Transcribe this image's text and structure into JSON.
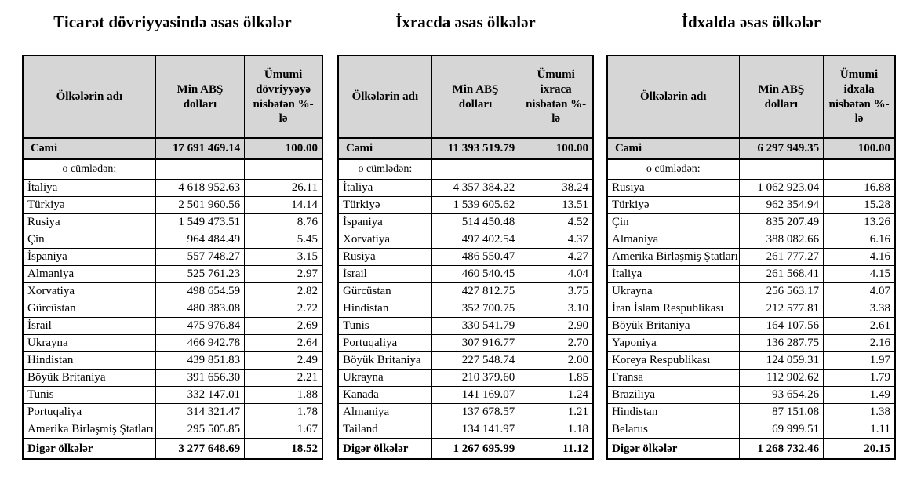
{
  "page": {
    "background_color": "#ffffff",
    "header_shading_color": "#d6d6d6",
    "border_color": "#000000"
  },
  "tables": [
    {
      "title": "Ticarət dövriyyəsində əsas ölkələr",
      "columns": [
        "Ölkələrin adı",
        "Min ABŞ dolları",
        "Ümumi dövriyyəyə nisbətən %-lə"
      ],
      "total": [
        "Cəmi",
        "17 691 469.14",
        "100.00"
      ],
      "subheader": "o cümlədən:",
      "rows": [
        [
          "İtaliya",
          "4 618 952.63",
          "26.11"
        ],
        [
          "Türkiyə",
          "2 501 960.56",
          "14.14"
        ],
        [
          "Rusiya",
          "1 549 473.51",
          "8.76"
        ],
        [
          "Çin",
          "964 484.49",
          "5.45"
        ],
        [
          "İspaniya",
          "557 748.27",
          "3.15"
        ],
        [
          "Almaniya",
          "525 761.23",
          "2.97"
        ],
        [
          "Xorvatiya",
          "498 654.59",
          "2.82"
        ],
        [
          "Gürcüstan",
          "480 383.08",
          "2.72"
        ],
        [
          "İsrail",
          "475 976.84",
          "2.69"
        ],
        [
          "Ukrayna",
          "466 942.78",
          "2.64"
        ],
        [
          "Hindistan",
          "439 851.83",
          "2.49"
        ],
        [
          "Böyük Britaniya",
          "391 656.30",
          "2.21"
        ],
        [
          "Tunis",
          "332 147.01",
          "1.88"
        ],
        [
          "Portuqaliya",
          "314 321.47",
          "1.78"
        ],
        [
          "Amerika Birləşmiş Ştatları",
          "295 505.85",
          "1.67"
        ]
      ],
      "footer": [
        "Digər ölkələr",
        "3 277 648.69",
        "18.52"
      ]
    },
    {
      "title": "İxracda əsas ölkələr",
      "columns": [
        "Ölkələrin adı",
        "Min ABŞ dolları",
        "Ümumi ixraca nisbətən %-lə"
      ],
      "total": [
        "Cəmi",
        "11 393 519.79",
        "100.00"
      ],
      "subheader": "o cümlədən:",
      "rows": [
        [
          "İtaliya",
          "4 357 384.22",
          "38.24"
        ],
        [
          "Türkiyə",
          "1 539 605.62",
          "13.51"
        ],
        [
          "İspaniya",
          "514 450.48",
          "4.52"
        ],
        [
          "Xorvatiya",
          "497 402.54",
          "4.37"
        ],
        [
          "Rusiya",
          "486 550.47",
          "4.27"
        ],
        [
          "İsrail",
          "460 540.45",
          "4.04"
        ],
        [
          "Gürcüstan",
          "427 812.75",
          "3.75"
        ],
        [
          "Hindistan",
          "352 700.75",
          "3.10"
        ],
        [
          "Tunis",
          "330 541.79",
          "2.90"
        ],
        [
          "Portuqaliya",
          "307 916.77",
          "2.70"
        ],
        [
          "Böyük Britaniya",
          "227 548.74",
          "2.00"
        ],
        [
          "Ukrayna",
          "210 379.60",
          "1.85"
        ],
        [
          "Kanada",
          "141 169.07",
          "1.24"
        ],
        [
          "Almaniya",
          "137 678.57",
          "1.21"
        ],
        [
          "Tailand",
          "134 141.97",
          "1.18"
        ]
      ],
      "footer": [
        "Digər ölkələr",
        "1 267 695.99",
        "11.12"
      ]
    },
    {
      "title": "İdxalda əsas ölkələr",
      "columns": [
        "Ölkələrin adı",
        "Min ABŞ dolları",
        "Ümumi idxala nisbətən %-lə"
      ],
      "total": [
        "Cəmi",
        "6 297 949.35",
        "100.00"
      ],
      "subheader": "o cümlədən:",
      "rows": [
        [
          "Rusiya",
          "1 062 923.04",
          "16.88"
        ],
        [
          "Türkiyə",
          "962 354.94",
          "15.28"
        ],
        [
          "Çin",
          "835 207.49",
          "13.26"
        ],
        [
          "Almaniya",
          "388 082.66",
          "6.16"
        ],
        [
          "Amerika Birləşmiş Ştatları",
          "261 777.27",
          "4.16"
        ],
        [
          "İtaliya",
          "261 568.41",
          "4.15"
        ],
        [
          "Ukrayna",
          "256 563.17",
          "4.07"
        ],
        [
          "İran İslam Respublikası",
          "212 577.81",
          "3.38"
        ],
        [
          "Böyük Britaniya",
          "164 107.56",
          "2.61"
        ],
        [
          "Yaponiya",
          "136 287.75",
          "2.16"
        ],
        [
          "Koreya Respublikası",
          "124 059.31",
          "1.97"
        ],
        [
          "Fransa",
          "112 902.62",
          "1.79"
        ],
        [
          "Braziliya",
          "93 654.26",
          "1.49"
        ],
        [
          "Hindistan",
          "87 151.08",
          "1.38"
        ],
        [
          "Belarus",
          "69 999.51",
          "1.11"
        ]
      ],
      "footer": [
        "Digər ölkələr",
        "1 268 732.46",
        "20.15"
      ]
    }
  ]
}
